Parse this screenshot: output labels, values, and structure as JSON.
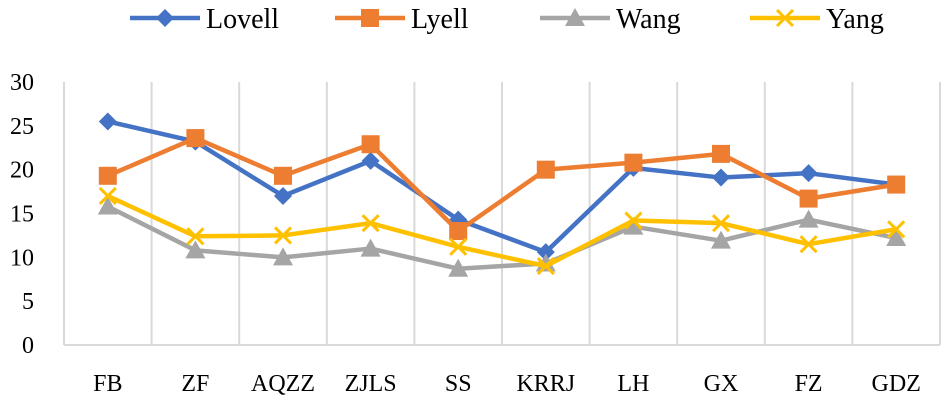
{
  "chart_data": {
    "type": "line",
    "title": "",
    "xlabel": "",
    "ylabel": "",
    "categories": [
      "FB",
      "ZF",
      "AQZZ",
      "ZJLS",
      "SS",
      "KRRJ",
      "LH",
      "GX",
      "FZ",
      "GDZ"
    ],
    "ylim": [
      0,
      30
    ],
    "yticks": [
      0,
      5,
      10,
      15,
      20,
      25,
      30
    ],
    "grid": "vertical",
    "legend_position": "top",
    "series": [
      {
        "name": "Lovell",
        "color": "#4472C4",
        "marker": "diamond",
        "values": [
          25.5,
          23.2,
          17.0,
          21.0,
          14.3,
          10.6,
          20.2,
          19.1,
          19.6,
          18.3
        ]
      },
      {
        "name": "Lyell",
        "color": "#ED7D31",
        "marker": "square",
        "values": [
          19.3,
          23.6,
          19.3,
          22.9,
          13.0,
          20.0,
          20.8,
          21.8,
          16.7,
          18.3
        ]
      },
      {
        "name": "Wang",
        "color": "#A5A5A5",
        "marker": "triangle",
        "values": [
          15.8,
          10.8,
          10.0,
          11.0,
          8.7,
          9.3,
          13.5,
          11.9,
          14.3,
          12.2
        ]
      },
      {
        "name": "Yang",
        "color": "#FFC000",
        "marker": "x",
        "values": [
          17.0,
          12.4,
          12.5,
          13.9,
          11.2,
          9.0,
          14.2,
          13.9,
          11.5,
          13.2
        ]
      }
    ]
  }
}
